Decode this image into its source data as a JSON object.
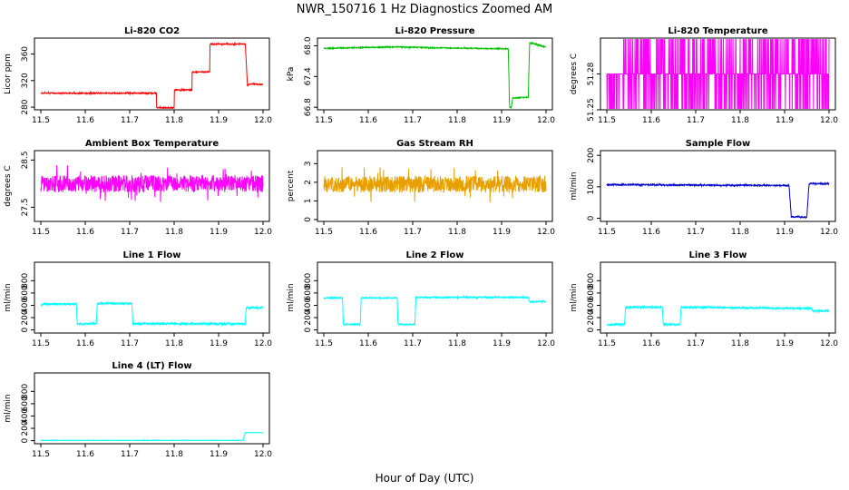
{
  "figure": {
    "title": "NWR_150716  1 Hz Diagnostics Zoomed AM",
    "xlabel": "Hour of Day (UTC)"
  },
  "chart_data": [
    {
      "type": "line",
      "title": "Li-820 CO2",
      "ylabel": "Licor ppm",
      "color": "#ff0000",
      "xlim": [
        11.5,
        12.0
      ],
      "xticks": [
        "11.5",
        "11.6",
        "11.7",
        "11.8",
        "11.9",
        "12.0"
      ],
      "ylim": [
        276,
        384
      ],
      "yticks": [
        "280",
        "320",
        "360"
      ],
      "segments": [
        [
          11.5,
          301
        ],
        [
          11.76,
          301
        ],
        [
          11.76,
          279
        ],
        [
          11.8,
          279
        ],
        [
          11.8,
          306
        ],
        [
          11.84,
          306
        ],
        [
          11.84,
          333
        ],
        [
          11.88,
          333
        ],
        [
          11.88,
          375
        ],
        [
          11.955,
          375
        ],
        [
          11.96,
          375
        ],
        [
          11.965,
          312
        ],
        [
          11.97,
          315
        ],
        [
          12.0,
          314
        ]
      ],
      "noise": 0.8
    },
    {
      "type": "line",
      "title": "Li-820 Pressure",
      "ylabel": "kPa",
      "color": "#00c000",
      "xlim": [
        11.5,
        12.0
      ],
      "xticks": [
        "11.5",
        "11.6",
        "11.7",
        "11.8",
        "11.9",
        "12.0"
      ],
      "ylim": [
        66.75,
        68.15
      ],
      "yticks": [
        "66.8",
        "67.4",
        "68.0"
      ],
      "segments": [
        [
          11.5,
          67.95
        ],
        [
          11.67,
          67.98
        ],
        [
          11.75,
          67.96
        ],
        [
          11.915,
          67.94
        ],
        [
          11.918,
          66.8
        ],
        [
          11.922,
          66.8
        ],
        [
          11.925,
          66.98
        ],
        [
          11.955,
          66.99
        ],
        [
          11.96,
          67.0
        ],
        [
          11.963,
          68.05
        ],
        [
          11.97,
          68.05
        ],
        [
          12.0,
          67.97
        ]
      ],
      "noise": 0.01
    },
    {
      "type": "binary",
      "title": "Li-820 Temperature",
      "ylabel": "degrees C",
      "color": "#ff00ff",
      "xlim": [
        11.5,
        12.0
      ],
      "xticks": [
        "11.5",
        "11.6",
        "11.7",
        "11.8",
        "11.9",
        "12.0"
      ],
      "ylim": [
        51.25,
        51.31
      ],
      "yticks": [
        "51.25",
        "51.28"
      ],
      "levels": [
        51.25,
        51.28,
        51.31
      ],
      "noise": 0
    },
    {
      "type": "line",
      "title": "Ambient Box Temperature",
      "ylabel": "degrees C",
      "color": "#ff00ff",
      "xlim": [
        11.5,
        12.0
      ],
      "xticks": [
        "11.5",
        "11.6",
        "11.7",
        "11.8",
        "11.9",
        "12.0"
      ],
      "ylim": [
        27.2,
        28.7
      ],
      "yticks": [
        "27.5",
        "28.5"
      ],
      "segments": [
        [
          11.5,
          28.0
        ],
        [
          12.0,
          28.0
        ]
      ],
      "noise": 0.18
    },
    {
      "type": "line",
      "title": "Gas Stream RH",
      "ylabel": "percent",
      "color": "#e8a000",
      "xlim": [
        11.5,
        12.0
      ],
      "xticks": [
        "11.5",
        "11.6",
        "11.7",
        "11.8",
        "11.9",
        "12.0"
      ],
      "ylim": [
        -0.1,
        3.7
      ],
      "yticks": [
        "0",
        "1",
        "2",
        "3"
      ],
      "segments": [
        [
          11.5,
          1.9
        ],
        [
          12.0,
          1.9
        ]
      ],
      "noise": 0.45
    },
    {
      "type": "line",
      "title": "Sample Flow",
      "ylabel": "ml/min",
      "color": "#0000cc",
      "xlim": [
        11.5,
        12.0
      ],
      "xticks": [
        "11.5",
        "11.6",
        "11.7",
        "11.8",
        "11.9",
        "12.0"
      ],
      "ylim": [
        -10,
        215
      ],
      "yticks": [
        "0",
        "100",
        "200"
      ],
      "segments": [
        [
          11.5,
          107
        ],
        [
          11.91,
          104
        ],
        [
          11.915,
          5
        ],
        [
          11.95,
          3
        ],
        [
          11.955,
          110
        ],
        [
          12.0,
          110
        ]
      ],
      "noise": 2
    },
    {
      "type": "line",
      "title": "Line 1 Flow",
      "ylabel": "ml/min",
      "color": "#00ffff",
      "xlim": [
        11.5,
        12.0
      ],
      "xticks": [
        "11.5",
        "11.6",
        "11.7",
        "11.8",
        "11.9",
        "12.0"
      ],
      "ylim": [
        -50,
        1100
      ],
      "yticks": [
        "0",
        "200",
        "400",
        "600",
        "800"
      ],
      "segments": [
        [
          11.5,
          420
        ],
        [
          11.58,
          420
        ],
        [
          11.582,
          100
        ],
        [
          11.625,
          100
        ],
        [
          11.627,
          430
        ],
        [
          11.705,
          430
        ],
        [
          11.707,
          100
        ],
        [
          11.96,
          100
        ],
        [
          11.962,
          360
        ],
        [
          12.0,
          360
        ]
      ],
      "noise": 15
    },
    {
      "type": "line",
      "title": "Line 2 Flow",
      "ylabel": "ml/min",
      "color": "#00ffff",
      "xlim": [
        11.5,
        12.0
      ],
      "xticks": [
        "11.5",
        "11.6",
        "11.7",
        "11.8",
        "11.9",
        "12.0"
      ],
      "ylim": [
        -50,
        1100
      ],
      "yticks": [
        "0",
        "200",
        "400",
        "600",
        "800"
      ],
      "segments": [
        [
          11.5,
          520
        ],
        [
          11.542,
          520
        ],
        [
          11.544,
          90
        ],
        [
          11.582,
          90
        ],
        [
          11.584,
          520
        ],
        [
          11.665,
          520
        ],
        [
          11.667,
          90
        ],
        [
          11.705,
          90
        ],
        [
          11.707,
          530
        ],
        [
          11.96,
          530
        ],
        [
          11.962,
          460
        ],
        [
          12.0,
          460
        ]
      ],
      "noise": 10
    },
    {
      "type": "line",
      "title": "Line 3 Flow",
      "ylabel": "ml/min",
      "color": "#00ffff",
      "xlim": [
        11.5,
        12.0
      ],
      "xticks": [
        "11.5",
        "11.6",
        "11.7",
        "11.8",
        "11.9",
        "12.0"
      ],
      "ylim": [
        -50,
        1100
      ],
      "yticks": [
        "0",
        "200",
        "400",
        "600",
        "800"
      ],
      "segments": [
        [
          11.5,
          90
        ],
        [
          11.54,
          90
        ],
        [
          11.542,
          370
        ],
        [
          11.625,
          370
        ],
        [
          11.627,
          90
        ],
        [
          11.665,
          90
        ],
        [
          11.667,
          370
        ],
        [
          11.96,
          350
        ],
        [
          11.962,
          310
        ],
        [
          12.0,
          310
        ]
      ],
      "noise": 15
    },
    {
      "type": "line",
      "title": "Line 4 (LT) Flow",
      "ylabel": "ml/min",
      "color": "#00ffff",
      "xlim": [
        11.5,
        12.0
      ],
      "xticks": [
        "11.5",
        "11.6",
        "11.7",
        "11.8",
        "11.9",
        "12.0"
      ],
      "ylim": [
        -50,
        1100
      ],
      "yticks": [
        "0",
        "200",
        "400",
        "600",
        "800"
      ],
      "segments": [
        [
          11.5,
          5
        ],
        [
          11.955,
          5
        ],
        [
          11.96,
          130
        ],
        [
          12.0,
          130
        ]
      ],
      "noise": 3
    }
  ]
}
